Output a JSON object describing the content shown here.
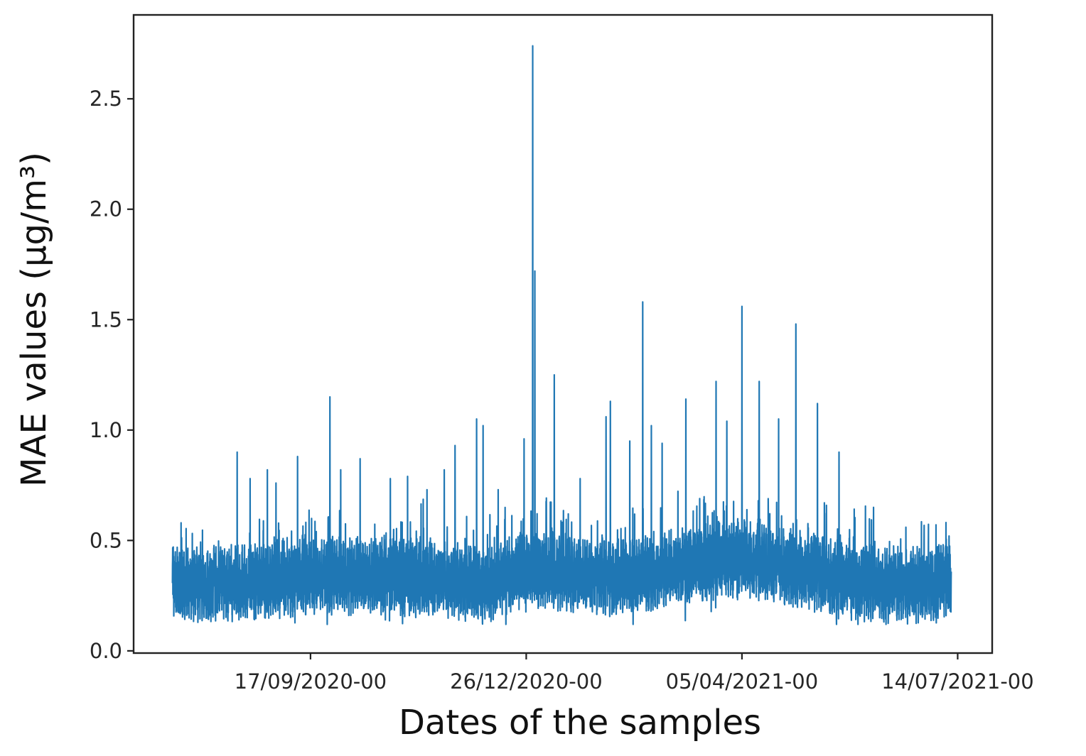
{
  "chart_data": {
    "type": "line",
    "title": "",
    "xlabel": "Dates of the samples",
    "ylabel": "MAE values (µg/m³)",
    "x_range": [
      "2020-06-27",
      "2021-07-30"
    ],
    "ylim": [
      -0.01,
      2.88
    ],
    "x_ticks": [
      {
        "date": "2020-09-17",
        "label": "17/09/2020-00"
      },
      {
        "date": "2020-12-26",
        "label": "26/12/2020-00"
      },
      {
        "date": "2021-04-05",
        "label": "05/04/2021-00"
      },
      {
        "date": "2021-07-14",
        "label": "14/07/2021-00"
      }
    ],
    "y_ticks": [
      {
        "value": 0.0,
        "label": "0.0"
      },
      {
        "value": 0.5,
        "label": "0.5"
      },
      {
        "value": 1.0,
        "label": "1.0"
      },
      {
        "value": 1.5,
        "label": "1.5"
      },
      {
        "value": 2.0,
        "label": "2.0"
      },
      {
        "value": 2.5,
        "label": "2.5"
      }
    ],
    "grid": false,
    "legend": "none",
    "colors": {
      "line": "#1f77b4",
      "axes": "#222222",
      "text": "#262626"
    },
    "series": [
      {
        "sampling": "hourly (24 samples per day)",
        "baseline": [
          {
            "date": "2020-07-15",
            "value": 0.31
          },
          {
            "date": "2020-08-01",
            "value": 0.3
          },
          {
            "date": "2020-08-20",
            "value": 0.31
          },
          {
            "date": "2020-09-10",
            "value": 0.33
          },
          {
            "date": "2020-10-01",
            "value": 0.34
          },
          {
            "date": "2020-10-25",
            "value": 0.33
          },
          {
            "date": "2020-11-15",
            "value": 0.32
          },
          {
            "date": "2020-12-10",
            "value": 0.3
          },
          {
            "date": "2020-12-28",
            "value": 0.38
          },
          {
            "date": "2021-01-20",
            "value": 0.34
          },
          {
            "date": "2021-02-10",
            "value": 0.33
          },
          {
            "date": "2021-02-28",
            "value": 0.36
          },
          {
            "date": "2021-03-20",
            "value": 0.4
          },
          {
            "date": "2021-04-05",
            "value": 0.42
          },
          {
            "date": "2021-04-25",
            "value": 0.38
          },
          {
            "date": "2021-05-15",
            "value": 0.33
          },
          {
            "date": "2021-06-10",
            "value": 0.3
          },
          {
            "date": "2021-07-01",
            "value": 0.3
          },
          {
            "date": "2021-07-11",
            "value": 0.32
          }
        ],
        "peaks": [
          {
            "date": "2020-07-19",
            "value": 0.58
          },
          {
            "date": "2020-08-14",
            "value": 0.9
          },
          {
            "date": "2020-08-20",
            "value": 0.78
          },
          {
            "date": "2020-08-28",
            "value": 0.82
          },
          {
            "date": "2020-09-01",
            "value": 0.76
          },
          {
            "date": "2020-09-11",
            "value": 0.88
          },
          {
            "date": "2020-09-26",
            "value": 1.15
          },
          {
            "date": "2020-10-01",
            "value": 0.82
          },
          {
            "date": "2020-10-10",
            "value": 0.87
          },
          {
            "date": "2020-10-24",
            "value": 0.78
          },
          {
            "date": "2020-11-01",
            "value": 0.79
          },
          {
            "date": "2020-11-10",
            "value": 0.73
          },
          {
            "date": "2020-11-18",
            "value": 0.82
          },
          {
            "date": "2020-11-23",
            "value": 0.93
          },
          {
            "date": "2020-12-03",
            "value": 1.05
          },
          {
            "date": "2020-12-06",
            "value": 1.02
          },
          {
            "date": "2020-12-13",
            "value": 0.73
          },
          {
            "date": "2020-12-25",
            "value": 0.96
          },
          {
            "date": "2020-12-29",
            "value": 2.74
          },
          {
            "date": "2020-12-30",
            "value": 1.72
          },
          {
            "date": "2021-01-08",
            "value": 1.25
          },
          {
            "date": "2021-01-20",
            "value": 0.78
          },
          {
            "date": "2021-02-01",
            "value": 1.06
          },
          {
            "date": "2021-02-03",
            "value": 1.13
          },
          {
            "date": "2021-02-12",
            "value": 0.95
          },
          {
            "date": "2021-02-18",
            "value": 1.58
          },
          {
            "date": "2021-02-22",
            "value": 1.02
          },
          {
            "date": "2021-02-27",
            "value": 0.94
          },
          {
            "date": "2021-03-10",
            "value": 1.14
          },
          {
            "date": "2021-03-24",
            "value": 1.22
          },
          {
            "date": "2021-03-29",
            "value": 1.04
          },
          {
            "date": "2021-04-05",
            "value": 1.56
          },
          {
            "date": "2021-04-13",
            "value": 1.22
          },
          {
            "date": "2021-04-22",
            "value": 1.05
          },
          {
            "date": "2021-04-30",
            "value": 1.48
          },
          {
            "date": "2021-05-10",
            "value": 1.12
          },
          {
            "date": "2021-05-20",
            "value": 0.9
          },
          {
            "date": "2021-06-05",
            "value": 0.65
          },
          {
            "date": "2021-06-20",
            "value": 0.56
          },
          {
            "date": "2021-07-10",
            "value": 0.52
          }
        ]
      }
    ]
  }
}
